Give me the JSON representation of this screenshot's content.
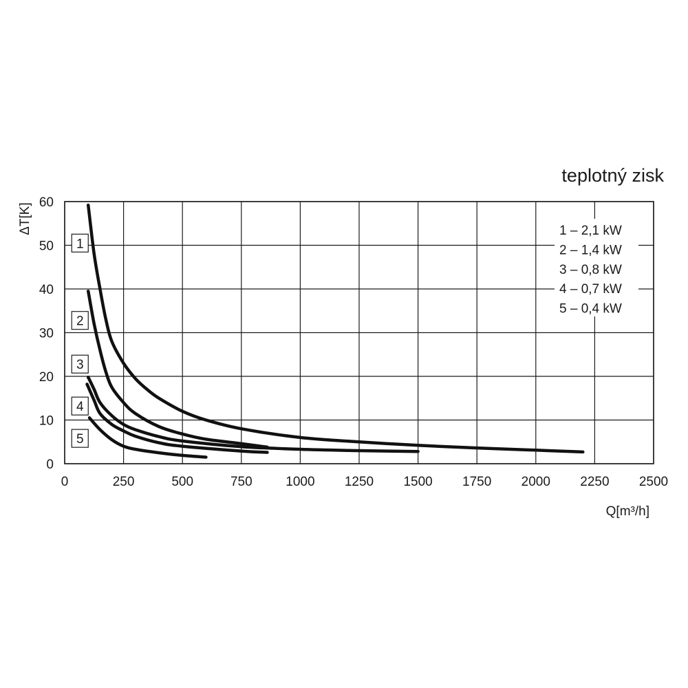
{
  "chart_data": {
    "type": "line",
    "title": "teplotný zisk",
    "xlabel": "Q[m³/h]",
    "ylabel": "ΔT[K]",
    "xlim": [
      0,
      2500
    ],
    "ylim": [
      0,
      60
    ],
    "xticks": [
      "0",
      "250",
      "500",
      "750",
      "1000",
      "1250",
      "1500",
      "1750",
      "2000",
      "2250",
      "2500"
    ],
    "yticks": [
      "0",
      "10",
      "20",
      "30",
      "40",
      "50",
      "60"
    ],
    "grid": true,
    "legend_position": "top-right",
    "legend": [
      "1 – 2,1 kW",
      "2 – 1,4 kW",
      "3 – 0,8 kW",
      "4 – 0,7 kW",
      "5 – 0,4 kW"
    ],
    "series": [
      {
        "name": "1",
        "label_anchor": [
          65,
          50.5
        ],
        "points": [
          [
            100,
            59.2
          ],
          [
            125,
            48
          ],
          [
            150,
            40
          ],
          [
            175,
            33
          ],
          [
            200,
            28
          ],
          [
            250,
            23
          ],
          [
            300,
            19.5
          ],
          [
            350,
            17
          ],
          [
            400,
            15
          ],
          [
            500,
            12
          ],
          [
            600,
            10
          ],
          [
            750,
            8
          ],
          [
            1000,
            6
          ],
          [
            1250,
            5
          ],
          [
            1500,
            4.2
          ],
          [
            1750,
            3.6
          ],
          [
            2000,
            3.1
          ],
          [
            2200,
            2.7
          ]
        ]
      },
      {
        "name": "2",
        "label_anchor": [
          65,
          32.8
        ],
        "points": [
          [
            100,
            39.5
          ],
          [
            125,
            32
          ],
          [
            150,
            26
          ],
          [
            175,
            21
          ],
          [
            200,
            17.5
          ],
          [
            250,
            14
          ],
          [
            300,
            11.5
          ],
          [
            400,
            8.5
          ],
          [
            500,
            6.8
          ],
          [
            600,
            5.6
          ],
          [
            750,
            4.6
          ],
          [
            860,
            3.8
          ]
        ]
      },
      {
        "name": "3",
        "label_anchor": [
          65,
          22.8
        ],
        "points": [
          [
            100,
            19.8
          ],
          [
            125,
            17
          ],
          [
            150,
            14
          ],
          [
            200,
            11
          ],
          [
            250,
            9
          ],
          [
            300,
            7.8
          ],
          [
            400,
            6.2
          ],
          [
            500,
            5.2
          ],
          [
            750,
            3.9
          ],
          [
            1000,
            3.3
          ],
          [
            1250,
            3
          ],
          [
            1500,
            2.8
          ]
        ]
      },
      {
        "name": "4",
        "label_anchor": [
          65,
          13.2
        ],
        "points": [
          [
            95,
            18.2
          ],
          [
            125,
            14.5
          ],
          [
            150,
            11.5
          ],
          [
            200,
            9
          ],
          [
            250,
            7.5
          ],
          [
            300,
            6.3
          ],
          [
            400,
            4.8
          ],
          [
            500,
            4
          ],
          [
            750,
            2.9
          ],
          [
            860,
            2.6
          ]
        ]
      },
      {
        "name": "5",
        "label_anchor": [
          65,
          5.8
        ],
        "points": [
          [
            105,
            10.5
          ],
          [
            150,
            7.8
          ],
          [
            200,
            5.5
          ],
          [
            250,
            4
          ],
          [
            300,
            3.3
          ],
          [
            400,
            2.5
          ],
          [
            500,
            1.9
          ],
          [
            600,
            1.5
          ]
        ]
      }
    ]
  }
}
